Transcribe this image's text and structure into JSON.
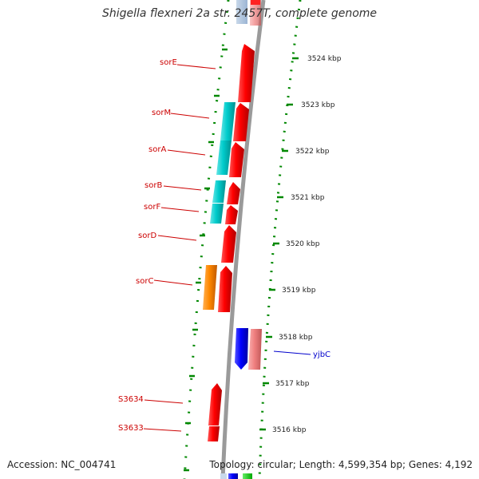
{
  "header": {
    "title": "Shigella flexneri 2a str. 2457T, complete genome"
  },
  "footer": {
    "accession": "Accession: NC_004741",
    "summary": "Topology: circular; Length: 4,599,354 bp; Genes: 4,192"
  },
  "scale_ticks": [
    "3524 kbp",
    "3523 kbp",
    "3522 kbp",
    "3521 kbp",
    "3520 kbp",
    "3519 kbp",
    "3518 kbp",
    "3517 kbp",
    "3516 kbp"
  ],
  "genes_reverse_strand": [
    "sorE",
    "sorM",
    "sorA",
    "sorB",
    "sorF",
    "sorD",
    "sorC",
    "S3634",
    "S3633"
  ],
  "genes_forward_strand": [
    "yjbC"
  ],
  "colors": {
    "cds": "#ff0000",
    "cds_alt": "#00cccc",
    "cds_orange": "#ff8800",
    "cds_blue": "#0000ff",
    "cds_pink": "#f08080",
    "backbone": "#999999",
    "ticks": "#008800",
    "label_red": "#cc0000",
    "label_blue": "#0000cc"
  }
}
